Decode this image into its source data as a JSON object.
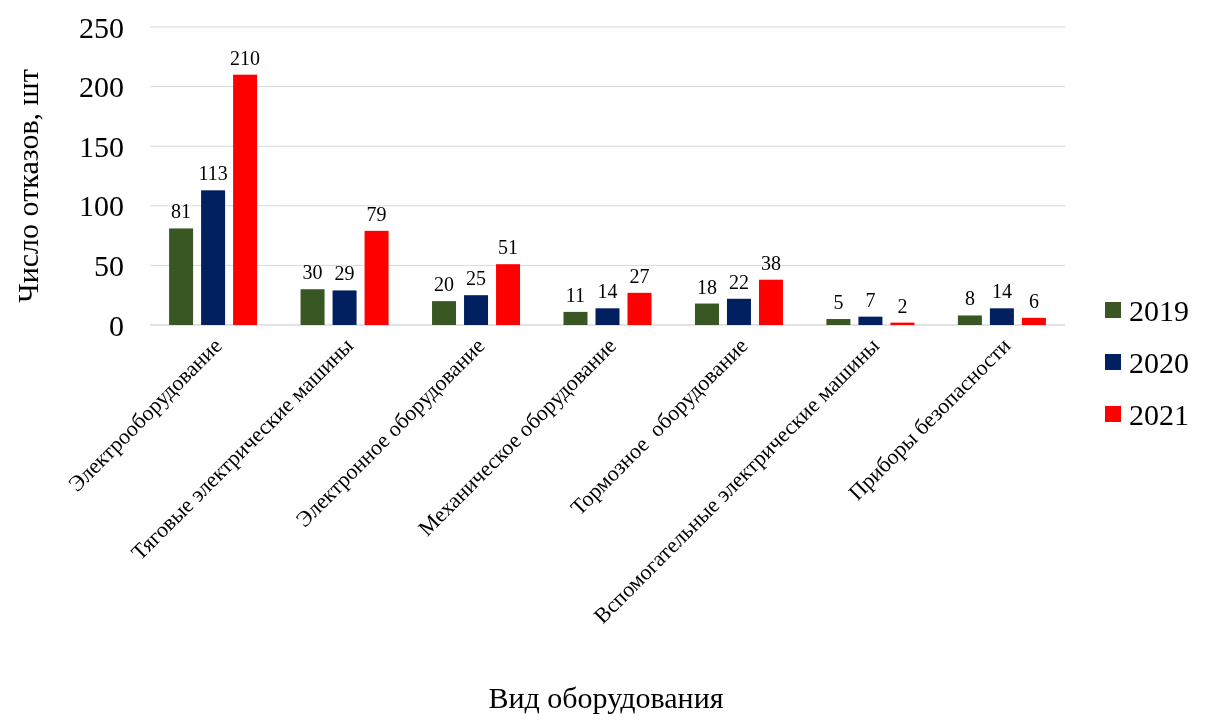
{
  "chart_data": {
    "type": "bar",
    "xlabel": "Вид оборудования",
    "ylabel": "Число отказов, шт",
    "categories": [
      "Электрооборудование",
      "Тяговые электрические машины",
      "Электронное оборудование",
      "Механическое оборудование",
      "Тормозное  оборудование",
      "Вспомогательные электрические машины",
      "Приборы безопасности"
    ],
    "series": [
      {
        "name": "2019",
        "color": "#385723",
        "values": [
          81,
          30,
          20,
          11,
          18,
          5,
          8
        ]
      },
      {
        "name": "2020",
        "color": "#002060",
        "values": [
          113,
          29,
          25,
          14,
          22,
          7,
          14
        ]
      },
      {
        "name": "2021",
        "color": "#ff0000",
        "values": [
          210,
          79,
          51,
          27,
          38,
          2,
          6
        ]
      }
    ],
    "ylim": [
      0,
      250
    ],
    "yticks": [
      0,
      50,
      100,
      150,
      200,
      250
    ],
    "grid": "y",
    "legend": "right",
    "data_labels": true
  }
}
